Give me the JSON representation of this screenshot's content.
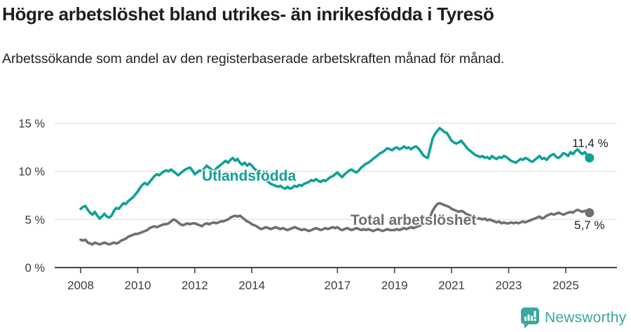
{
  "header": {
    "title": "Högre arbetslöshet bland utrikes- än inrikesfödda i Tyresö",
    "subtitle": "Arbetssökande som andel av den registerbaserade arbetskraften månad för månad."
  },
  "chart_data": {
    "type": "line",
    "x_start": 2008.0,
    "x_step_years": 0.0833333,
    "x_tick_values": [
      2008,
      2010,
      2012,
      2014,
      2017,
      2019,
      2021,
      2023,
      2025
    ],
    "x_tick_labels": [
      "2008",
      "2010",
      "2012",
      "2014",
      "2017",
      "2019",
      "2021",
      "2023",
      "2025"
    ],
    "y_tick_values": [
      0,
      5,
      10,
      15
    ],
    "y_tick_labels": [
      "0 %",
      "5 %",
      "10 %",
      "15 %"
    ],
    "ylim": [
      0,
      15.5
    ],
    "grid": "horizontal-only",
    "legend": "inline-series-labels",
    "series": [
      {
        "name": "Utlandsfödda",
        "color": "#0fa195",
        "end_label": "11,4 %",
        "end_value": 11.4,
        "values": [
          6.1,
          6.3,
          6.4,
          6.0,
          5.7,
          5.5,
          5.8,
          5.4,
          5.1,
          5.3,
          5.6,
          5.3,
          5.2,
          5.4,
          5.9,
          6.2,
          6.1,
          6.4,
          6.7,
          6.6,
          6.9,
          7.1,
          7.3,
          7.6,
          7.9,
          8.3,
          8.6,
          8.8,
          8.6,
          8.9,
          9.2,
          9.5,
          9.7,
          9.6,
          9.8,
          10.0,
          10.1,
          10.0,
          10.2,
          10.0,
          9.8,
          9.6,
          9.8,
          10.0,
          10.2,
          10.3,
          10.4,
          10.1,
          9.7,
          9.9,
          10.1,
          10.0,
          10.3,
          10.6,
          10.4,
          10.2,
          10.0,
          10.3,
          10.5,
          10.7,
          10.9,
          11.1,
          10.9,
          11.2,
          11.4,
          11.1,
          11.3,
          10.9,
          10.7,
          10.9,
          10.6,
          10.8,
          10.6,
          10.3,
          10.1,
          9.8,
          9.6,
          9.3,
          9.1,
          8.9,
          8.7,
          8.6,
          8.5,
          8.4,
          8.5,
          8.3,
          8.2,
          8.4,
          8.2,
          8.3,
          8.5,
          8.4,
          8.6,
          8.5,
          8.7,
          8.8,
          8.9,
          9.1,
          9.0,
          9.2,
          9.0,
          8.9,
          9.1,
          9.0,
          9.2,
          9.4,
          9.5,
          9.7,
          9.9,
          9.6,
          9.4,
          9.7,
          9.9,
          10.1,
          10.2,
          10.0,
          9.9,
          10.1,
          10.4,
          10.6,
          10.8,
          10.9,
          11.1,
          11.3,
          11.5,
          11.7,
          11.9,
          12.0,
          12.2,
          12.4,
          12.3,
          12.2,
          12.4,
          12.5,
          12.3,
          12.4,
          12.6,
          12.4,
          12.5,
          12.3,
          12.5,
          12.6,
          12.4,
          12.1,
          11.7,
          11.5,
          11.4,
          12.4,
          13.4,
          13.9,
          14.2,
          14.5,
          14.3,
          14.1,
          14.0,
          13.6,
          13.2,
          13.0,
          12.9,
          13.0,
          13.2,
          12.9,
          12.6,
          12.3,
          12.1,
          11.9,
          11.7,
          11.6,
          11.5,
          11.6,
          11.4,
          11.5,
          11.3,
          11.6,
          11.4,
          11.3,
          11.5,
          11.4,
          11.6,
          11.5,
          11.3,
          11.1,
          11.0,
          10.9,
          11.1,
          11.3,
          11.2,
          11.4,
          11.3,
          11.1,
          11.0,
          11.2,
          11.4,
          11.6,
          11.3,
          11.4,
          11.2,
          11.5,
          11.7,
          11.8,
          11.5,
          11.4,
          11.6,
          11.9,
          11.8,
          11.6,
          12.0,
          11.8,
          12.1,
          12.3,
          12.0,
          11.8,
          12.0,
          11.7,
          11.4
        ]
      },
      {
        "name": "Total arbetslöshet",
        "color": "#6f6f6f",
        "end_label": "5,7 %",
        "end_value": 5.7,
        "values": [
          2.9,
          2.8,
          2.9,
          2.6,
          2.5,
          2.4,
          2.6,
          2.5,
          2.4,
          2.5,
          2.6,
          2.5,
          2.4,
          2.5,
          2.6,
          2.5,
          2.6,
          2.8,
          2.9,
          3.0,
          3.2,
          3.3,
          3.4,
          3.5,
          3.5,
          3.6,
          3.7,
          3.8,
          3.9,
          4.1,
          4.2,
          4.3,
          4.2,
          4.3,
          4.4,
          4.5,
          4.5,
          4.6,
          4.8,
          5.0,
          4.9,
          4.7,
          4.5,
          4.4,
          4.5,
          4.6,
          4.5,
          4.6,
          4.6,
          4.5,
          4.4,
          4.3,
          4.5,
          4.6,
          4.5,
          4.6,
          4.7,
          4.6,
          4.7,
          4.8,
          4.8,
          4.9,
          5.0,
          5.2,
          5.3,
          5.4,
          5.3,
          5.4,
          5.2,
          5.0,
          4.8,
          4.7,
          4.5,
          4.4,
          4.3,
          4.1,
          4.0,
          4.1,
          4.2,
          4.1,
          4.0,
          4.1,
          4.2,
          4.1,
          4.0,
          4.1,
          4.0,
          3.9,
          4.0,
          4.1,
          4.2,
          4.1,
          4.0,
          3.9,
          4.0,
          3.9,
          3.8,
          3.9,
          4.0,
          4.1,
          4.0,
          3.9,
          4.0,
          4.1,
          4.0,
          4.1,
          4.2,
          4.1,
          4.2,
          4.0,
          3.9,
          4.0,
          4.1,
          4.0,
          3.9,
          4.0,
          4.1,
          4.0,
          3.9,
          4.0,
          3.9,
          4.0,
          3.9,
          3.8,
          3.9,
          4.0,
          3.9,
          3.8,
          3.9,
          4.0,
          3.9,
          3.9,
          3.9,
          4.0,
          3.9,
          4.0,
          4.1,
          4.0,
          4.1,
          4.2,
          4.1,
          4.2,
          4.3,
          4.4,
          4.5,
          4.6,
          4.7,
          5.3,
          5.9,
          6.3,
          6.6,
          6.7,
          6.6,
          6.5,
          6.4,
          6.3,
          6.1,
          6.0,
          5.9,
          5.8,
          5.9,
          5.8,
          5.6,
          5.5,
          5.4,
          5.3,
          5.2,
          5.1,
          5.1,
          5.0,
          5.1,
          4.9,
          5.0,
          4.9,
          4.8,
          4.7,
          4.8,
          4.6,
          4.7,
          4.6,
          4.6,
          4.7,
          4.6,
          4.7,
          4.6,
          4.7,
          4.8,
          4.7,
          4.8,
          4.9,
          5.0,
          5.1,
          5.2,
          5.3,
          5.1,
          5.2,
          5.4,
          5.5,
          5.6,
          5.5,
          5.6,
          5.7,
          5.6,
          5.5,
          5.6,
          5.7,
          5.8,
          5.7,
          5.9,
          6.0,
          5.9,
          5.8,
          5.9,
          5.8,
          5.7
        ]
      }
    ]
  },
  "footer": {
    "brand": "Newsworthy",
    "brand_color": "#3ca79c",
    "logo_icon": "speech-bubble-bar-chart"
  }
}
